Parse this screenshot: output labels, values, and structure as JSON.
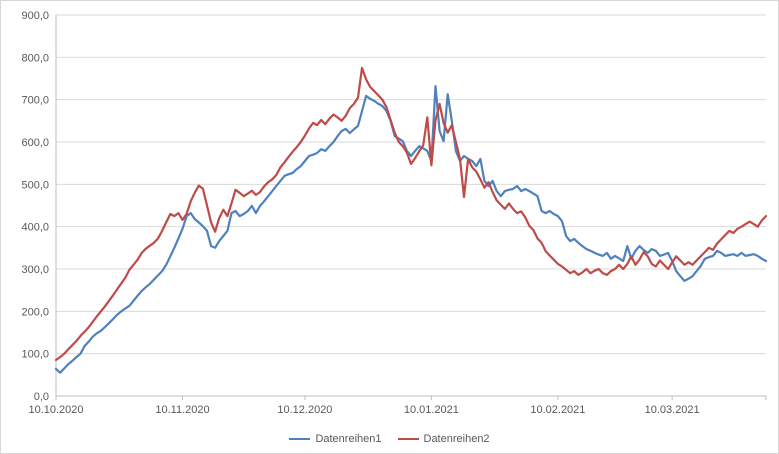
{
  "chart_data": {
    "type": "line",
    "title": "",
    "xlabel": "",
    "ylabel": "",
    "grid": true,
    "legend_position": "bottom",
    "x_axis": {
      "range": [
        0,
        174
      ],
      "ticks": [
        {
          "label": "10.10.2020",
          "day": 0
        },
        {
          "label": "10.11.2020",
          "day": 31
        },
        {
          "label": "10.12.2020",
          "day": 61
        },
        {
          "label": "10.01.2021",
          "day": 92
        },
        {
          "label": "10.02.2021",
          "day": 123
        },
        {
          "label": "10.03.2021",
          "day": 151
        }
      ]
    },
    "y_axis": {
      "min": 0,
      "max": 900,
      "step": 100,
      "tick_labels": [
        "0,0",
        "100,0",
        "200,0",
        "300,0",
        "400,0",
        "500,0",
        "600,0",
        "700,0",
        "800,0",
        "900,0"
      ]
    },
    "series": [
      {
        "name": "Datenreihen1",
        "color": "#4F81BD",
        "values": [
          64,
          55,
          65,
          75,
          83,
          92,
          100,
          118,
          128,
          140,
          148,
          154,
          163,
          172,
          182,
          192,
          200,
          207,
          213,
          225,
          237,
          248,
          257,
          265,
          275,
          285,
          295,
          310,
          330,
          350,
          372,
          395,
          425,
          432,
          418,
          410,
          401,
          390,
          354,
          350,
          366,
          378,
          390,
          432,
          437,
          425,
          430,
          437,
          449,
          432,
          449,
          460,
          472,
          484,
          496,
          508,
          520,
          524,
          527,
          536,
          543,
          555,
          567,
          570,
          574,
          583,
          579,
          590,
          600,
          614,
          626,
          631,
          621,
          630,
          638,
          673,
          709,
          702,
          697,
          690,
          685,
          673,
          650,
          614,
          608,
          602,
          579,
          567,
          579,
          590,
          585,
          579,
          555,
          732,
          626,
          602,
          713,
          650,
          579,
          555,
          567,
          560,
          555,
          543,
          560,
          508,
          496,
          508,
          484,
          472,
          484,
          487,
          489,
          496,
          484,
          489,
          484,
          478,
          472,
          437,
          432,
          437,
          430,
          425,
          413,
          378,
          366,
          371,
          362,
          354,
          347,
          343,
          338,
          334,
          331,
          338,
          324,
          331,
          325,
          319,
          354,
          324,
          343,
          354,
          345,
          338,
          347,
          343,
          331,
          334,
          338,
          319,
          295,
          283,
          272,
          277,
          283,
          295,
          307,
          324,
          328,
          331,
          343,
          338,
          331,
          333,
          335,
          331,
          338,
          331,
          333,
          335,
          331,
          324,
          319
        ]
      },
      {
        "name": "Datenreihen2",
        "color": "#BE4B48",
        "values": [
          85,
          92,
          100,
          110,
          120,
          130,
          142,
          152,
          162,
          175,
          188,
          200,
          212,
          225,
          238,
          252,
          266,
          280,
          298,
          310,
          322,
          338,
          348,
          355,
          362,
          372,
          390,
          410,
          430,
          425,
          432,
          416,
          430,
          460,
          480,
          497,
          490,
          450,
          410,
          388,
          420,
          440,
          425,
          455,
          487,
          480,
          472,
          478,
          485,
          475,
          482,
          495,
          505,
          512,
          522,
          540,
          552,
          565,
          577,
          588,
          600,
          615,
          632,
          645,
          640,
          652,
          642,
          655,
          665,
          658,
          650,
          662,
          680,
          690,
          705,
          775,
          748,
          730,
          720,
          710,
          700,
          682,
          652,
          622,
          600,
          590,
          575,
          548,
          562,
          578,
          592,
          658,
          545,
          652,
          690,
          645,
          622,
          640,
          600,
          560,
          470,
          560,
          540,
          530,
          512,
          492,
          505,
          482,
          462,
          452,
          442,
          455,
          442,
          432,
          436,
          422,
          402,
          392,
          372,
          362,
          342,
          332,
          322,
          312,
          306,
          298,
          290,
          295,
          286,
          292,
          300,
          290,
          296,
          300,
          290,
          286,
          295,
          300,
          310,
          300,
          312,
          330,
          310,
          322,
          340,
          330,
          312,
          306,
          320,
          310,
          300,
          315,
          330,
          320,
          310,
          316,
          310,
          320,
          330,
          340,
          350,
          345,
          360,
          370,
          380,
          390,
          385,
          395,
          400,
          406,
          412,
          406,
          400,
          415,
          425
        ]
      }
    ]
  },
  "colors": {
    "background": "#FFFFFF",
    "border": "#D7D7D7",
    "grid": "#D9D9D9",
    "axis": "#BFBFBF",
    "tick_text": "#595959",
    "series1": "#4F81BD",
    "series2": "#BE4B48"
  }
}
